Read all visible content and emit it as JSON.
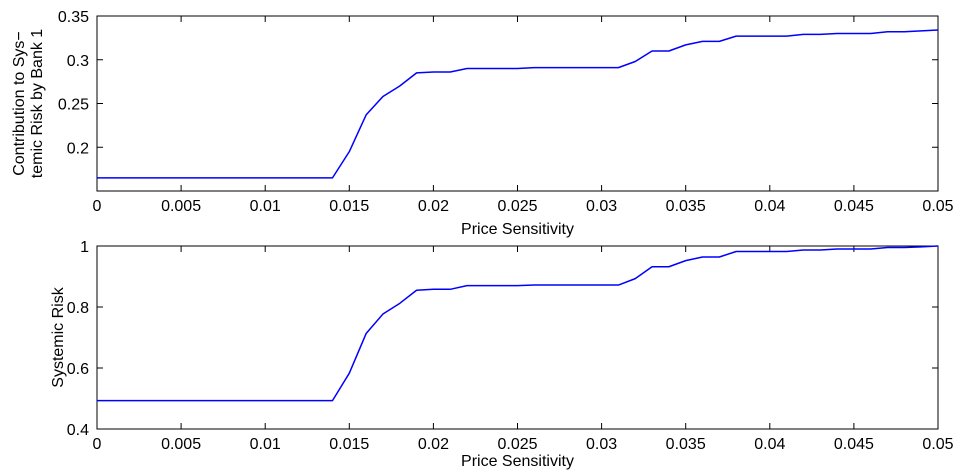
{
  "chart_data": [
    {
      "type": "line",
      "title": "",
      "xlabel": "Price Sensitivity",
      "ylabel": [
        "Contribution to Sys−",
        "temic Risk by Bank 1"
      ],
      "xlim": [
        0,
        0.05
      ],
      "ylim": [
        0.15,
        0.35
      ],
      "xticks": [
        "0",
        "0.005",
        "0.01",
        "0.015",
        "0.02",
        "0.025",
        "0.03",
        "0.035",
        "0.04",
        "0.045",
        "0.05"
      ],
      "xtick_values": [
        0,
        0.005,
        0.01,
        0.015,
        0.02,
        0.025,
        0.03,
        0.035,
        0.04,
        0.045,
        0.05
      ],
      "yticks": [
        "0.2",
        "0.25",
        "0.3",
        "0.35"
      ],
      "ytick_values": [
        0.2,
        0.25,
        0.3,
        0.35
      ],
      "grid": false,
      "series_color": "#0000ff",
      "series": [
        {
          "x": [
            0,
            0.001,
            0.002,
            0.003,
            0.004,
            0.005,
            0.006,
            0.007,
            0.008,
            0.009,
            0.01,
            0.011,
            0.012,
            0.013,
            0.014,
            0.015,
            0.016,
            0.017,
            0.018,
            0.019,
            0.02,
            0.021,
            0.022,
            0.023,
            0.024,
            0.025,
            0.026,
            0.027,
            0.028,
            0.029,
            0.03,
            0.031,
            0.032,
            0.033,
            0.034,
            0.035,
            0.036,
            0.037,
            0.038,
            0.039,
            0.04,
            0.041,
            0.042,
            0.043,
            0.044,
            0.045,
            0.046,
            0.047,
            0.048,
            0.049,
            0.05
          ],
          "values": [
            0.165,
            0.165,
            0.165,
            0.165,
            0.165,
            0.165,
            0.165,
            0.165,
            0.165,
            0.165,
            0.165,
            0.165,
            0.165,
            0.165,
            0.165,
            0.195,
            0.237,
            0.258,
            0.27,
            0.285,
            0.286,
            0.286,
            0.29,
            0.29,
            0.29,
            0.29,
            0.291,
            0.291,
            0.291,
            0.291,
            0.291,
            0.291,
            0.298,
            0.31,
            0.31,
            0.317,
            0.321,
            0.321,
            0.327,
            0.327,
            0.327,
            0.327,
            0.329,
            0.329,
            0.33,
            0.33,
            0.33,
            0.332,
            0.332,
            0.333,
            0.334
          ]
        }
      ]
    },
    {
      "type": "line",
      "title": "",
      "xlabel": "Price Sensitivity",
      "ylabel": [
        "Systemic Risk"
      ],
      "xlim": [
        0,
        0.05
      ],
      "ylim": [
        0.4,
        1
      ],
      "xticks": [
        "0",
        "0.005",
        "0.01",
        "0.015",
        "0.02",
        "0.025",
        "0.03",
        "0.035",
        "0.04",
        "0.045",
        "0.05"
      ],
      "xtick_values": [
        0,
        0.005,
        0.01,
        0.015,
        0.02,
        0.025,
        0.03,
        0.035,
        0.04,
        0.045,
        0.05
      ],
      "yticks": [
        "0.4",
        "0.6",
        "0.8",
        "1"
      ],
      "ytick_values": [
        0.4,
        0.6,
        0.8,
        1.0
      ],
      "grid": false,
      "series_color": "#0000ff",
      "series": [
        {
          "x": [
            0,
            0.001,
            0.002,
            0.003,
            0.004,
            0.005,
            0.006,
            0.007,
            0.008,
            0.009,
            0.01,
            0.011,
            0.012,
            0.013,
            0.014,
            0.015,
            0.016,
            0.017,
            0.018,
            0.019,
            0.02,
            0.021,
            0.022,
            0.023,
            0.024,
            0.025,
            0.026,
            0.027,
            0.028,
            0.029,
            0.03,
            0.031,
            0.032,
            0.033,
            0.034,
            0.035,
            0.036,
            0.037,
            0.038,
            0.039,
            0.04,
            0.041,
            0.042,
            0.043,
            0.044,
            0.045,
            0.046,
            0.047,
            0.048,
            0.049,
            0.05
          ],
          "values": [
            0.493,
            0.493,
            0.493,
            0.493,
            0.493,
            0.493,
            0.493,
            0.493,
            0.493,
            0.493,
            0.493,
            0.493,
            0.493,
            0.493,
            0.493,
            0.583,
            0.713,
            0.777,
            0.812,
            0.855,
            0.858,
            0.858,
            0.87,
            0.87,
            0.87,
            0.87,
            0.872,
            0.872,
            0.872,
            0.872,
            0.872,
            0.872,
            0.893,
            0.932,
            0.932,
            0.952,
            0.964,
            0.964,
            0.982,
            0.982,
            0.982,
            0.982,
            0.987,
            0.987,
            0.99,
            0.99,
            0.99,
            0.995,
            0.995,
            0.997,
            1.0
          ]
        }
      ]
    }
  ]
}
